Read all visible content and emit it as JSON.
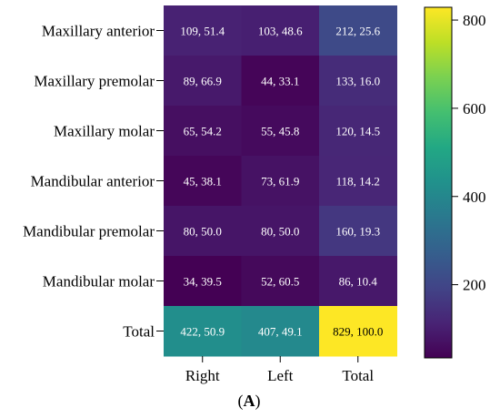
{
  "chart_data": {
    "type": "heatmap",
    "rows": [
      "Maxillary anterior",
      "Maxillary premolar",
      "Maxillary molar",
      "Mandibular anterior",
      "Mandibular premolar",
      "Mandibular molar",
      "Total"
    ],
    "columns": [
      "Right",
      "Left",
      "Total"
    ],
    "values": [
      [
        109,
        103,
        212
      ],
      [
        89,
        44,
        133
      ],
      [
        65,
        55,
        120
      ],
      [
        45,
        73,
        118
      ],
      [
        80,
        80,
        160
      ],
      [
        34,
        52,
        86
      ],
      [
        422,
        407,
        829
      ]
    ],
    "percentages": [
      [
        51.4,
        48.6,
        25.6
      ],
      [
        66.9,
        33.1,
        16.0
      ],
      [
        54.2,
        45.8,
        14.5
      ],
      [
        38.1,
        61.9,
        14.2
      ],
      [
        50.0,
        50.0,
        19.3
      ],
      [
        39.5,
        60.5,
        10.4
      ],
      [
        50.9,
        49.1,
        100.0
      ]
    ],
    "cell_labels": [
      [
        "109, 51.4",
        "103, 48.6",
        "212, 25.6"
      ],
      [
        "89, 66.9",
        "44, 33.1",
        "133, 16.0"
      ],
      [
        "65, 54.2",
        "55, 45.8",
        "120, 14.5"
      ],
      [
        "45, 38.1",
        "73, 61.9",
        "118, 14.2"
      ],
      [
        "80, 50.0",
        "80, 50.0",
        "160, 19.3"
      ],
      [
        "34, 39.5",
        "52, 60.5",
        "86, 10.4"
      ],
      [
        "422, 50.9",
        "407, 49.1",
        "829, 100.0"
      ]
    ],
    "colorbar": {
      "colormap": "viridis",
      "ticks": [
        200,
        400,
        600,
        800
      ],
      "range": [
        34,
        829
      ]
    },
    "panel_label_letter": "A",
    "panel_label_open": "(",
    "panel_label_close": ")"
  }
}
